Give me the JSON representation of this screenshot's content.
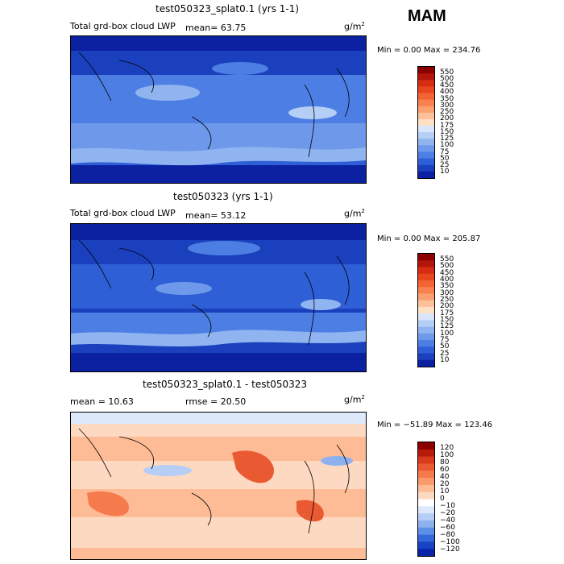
{
  "season": "MAM",
  "units": "g/m",
  "units_exp": "2",
  "panels": [
    {
      "title": "test050323_splat0.1 (yrs 1-1)",
      "subtitle_left": "Total grd-box cloud LWP",
      "stat": "mean=  63.75",
      "minmax": "Min =    0.00 Max = 234.76"
    },
    {
      "title": "test050323 (yrs 1-1)",
      "subtitle_left": "Total grd-box cloud LWP",
      "stat": "mean=  53.12",
      "minmax": "Min =    0.00 Max = 205.87"
    },
    {
      "title": "test050323_splat0.1 - test050323",
      "subtitle_left": "mean =   10.63",
      "stat": "rmse =   20.50",
      "minmax": "Min = −51.89 Max = 123.46"
    }
  ],
  "chart_data": [
    {
      "type": "heatmap",
      "title": "test050323_splat0.1 (yrs 1-1)",
      "variable": "Total grd-box cloud LWP",
      "units": "g/m2",
      "mean": 63.75,
      "min": 0.0,
      "max": 234.76,
      "levels": [
        10,
        25,
        50,
        75,
        100,
        125,
        150,
        175,
        200,
        250,
        300,
        350,
        400,
        450,
        500,
        550
      ],
      "level_labels": [
        "550",
        "500",
        "450",
        "400",
        "350",
        "300",
        "250",
        "200",
        "175",
        "150",
        "125",
        "100",
        "75",
        "50",
        "25",
        "10"
      ],
      "colors": [
        "#8b0000",
        "#b2150a",
        "#d52c12",
        "#e8461e",
        "#f26434",
        "#f8814f",
        "#fba070",
        "#fdc09a",
        "#fde0c6",
        "#d7e6fa",
        "#b4ceF5",
        "#8fb4f0",
        "#6e99ea",
        "#4d7ee4",
        "#2f5fd6",
        "#1a40bd",
        "#0c21a1"
      ]
    },
    {
      "type": "heatmap",
      "title": "test050323 (yrs 1-1)",
      "variable": "Total grd-box cloud LWP",
      "units": "g/m2",
      "mean": 53.12,
      "min": 0.0,
      "max": 205.87,
      "levels": [
        10,
        25,
        50,
        75,
        100,
        125,
        150,
        175,
        200,
        250,
        300,
        350,
        400,
        450,
        500,
        550
      ],
      "level_labels": [
        "550",
        "500",
        "450",
        "400",
        "350",
        "300",
        "250",
        "200",
        "175",
        "150",
        "125",
        "100",
        "75",
        "50",
        "25",
        "10"
      ],
      "colors": [
        "#8b0000",
        "#b2150a",
        "#d52c12",
        "#e8461e",
        "#f26434",
        "#f8814f",
        "#fba070",
        "#fdc09a",
        "#fde0c6",
        "#d7e6fa",
        "#b4ceF5",
        "#8fb4f0",
        "#6e99ea",
        "#4d7ee4",
        "#2f5fd6",
        "#1a40bd",
        "#0c21a1"
      ]
    },
    {
      "type": "heatmap",
      "title": "test050323_splat0.1 - test050323",
      "units": "g/m2",
      "mean": 10.63,
      "rmse": 20.5,
      "min": -51.89,
      "max": 123.46,
      "levels": [
        -120,
        -100,
        -80,
        -60,
        -40,
        -20,
        -10,
        0,
        10,
        20,
        40,
        60,
        80,
        100,
        120
      ],
      "level_labels": [
        "120",
        "100",
        "80",
        "60",
        "40",
        "20",
        "10",
        "0",
        "−10",
        "−20",
        "−40",
        "−60",
        "−80",
        "−100",
        "−120"
      ],
      "colors": [
        "#8b0000",
        "#b81a0c",
        "#d93a1c",
        "#ea5a32",
        "#f57b4c",
        "#fa9b6c",
        "#fdbb96",
        "#fdd9c2",
        "#ffffff",
        "#dce9fb",
        "#b6cef5",
        "#8cb1ee",
        "#5e8fe6",
        "#3369da",
        "#1743c4",
        "#0a22a8"
      ]
    }
  ]
}
